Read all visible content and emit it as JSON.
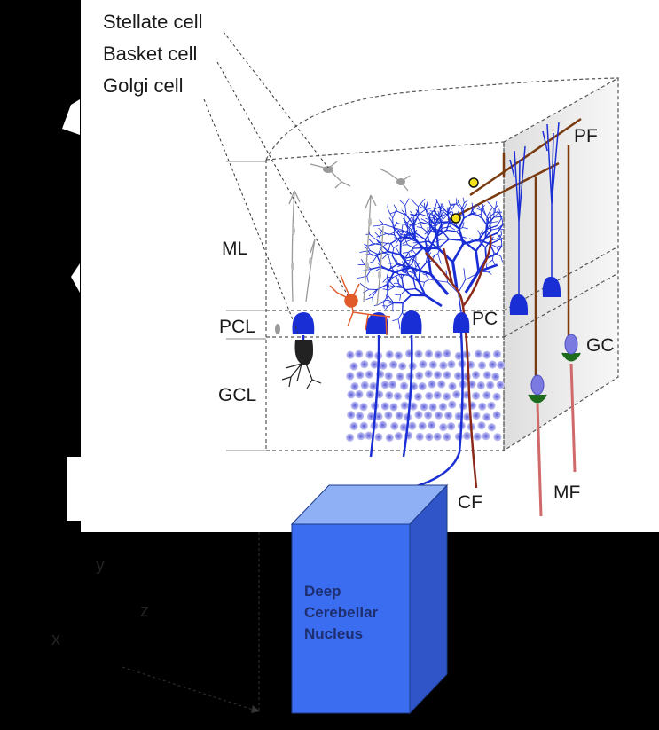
{
  "cell_labels": {
    "stellate": "Stellate cell",
    "basket": "Basket cell",
    "golgi": "Golgi cell"
  },
  "layer_labels": {
    "ml": "ML",
    "pcl": "PCL",
    "gcl": "GCL"
  },
  "structure_labels": {
    "pf": "PF",
    "pc": "PC",
    "gc": "GC",
    "cf": "CF",
    "mf": "MF"
  },
  "nucleus": {
    "line1": "Deep",
    "line2": "Cerebellar",
    "line3": "Nucleus"
  },
  "axes": {
    "y": "y",
    "z": "z",
    "x": "x"
  },
  "colors": {
    "purkinje": "#1a2ed6",
    "parallel_fiber": "#7a3a10",
    "climbing_fiber": "#8b2a1a",
    "mossy_fiber": "#d06a6a",
    "granule": "#7a7ae0",
    "basket": "#e05a2a",
    "box_front": "#3a6df0",
    "box_top": "#8fb0f5",
    "box_side": "#2f55c8"
  }
}
